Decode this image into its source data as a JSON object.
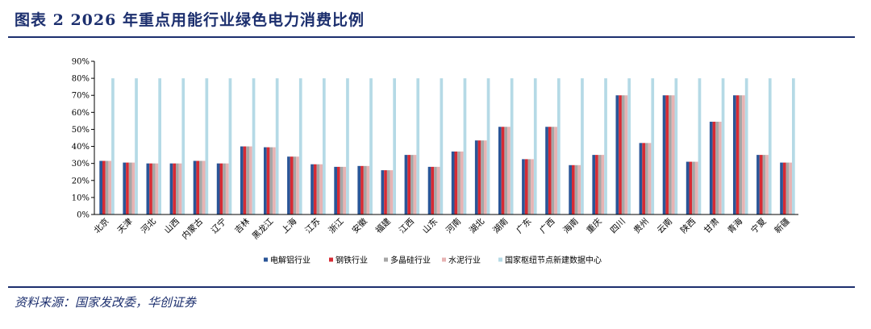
{
  "figure": {
    "title": "图表 2   2026 年重点用能行业绿色电力消费比例",
    "source": "资料来源：国家发改委，华创证券"
  },
  "chart_data": {
    "type": "bar",
    "categories": [
      "北京",
      "天津",
      "河北",
      "山西",
      "内蒙古",
      "辽宁",
      "吉林",
      "黑龙江",
      "上海",
      "江苏",
      "浙江",
      "安徽",
      "福建",
      "江西",
      "山东",
      "河南",
      "湖北",
      "湖南",
      "广东",
      "广西",
      "海南",
      "重庆",
      "四川",
      "贵州",
      "云南",
      "陕西",
      "甘肃",
      "青海",
      "宁夏",
      "新疆"
    ],
    "y_ticks": [
      "0%",
      "10%",
      "20%",
      "30%",
      "40%",
      "50%",
      "60%",
      "70%",
      "80%",
      "90%"
    ],
    "ylim": [
      0,
      90
    ],
    "legend_position": "bottom",
    "grid": false,
    "colors": [
      "#2a5597",
      "#d62b34",
      "#a6a6a6",
      "#e7b3b3",
      "#b5dae6"
    ],
    "series": [
      {
        "name": "电解铝行业",
        "values": [
          31.5,
          30.5,
          30,
          30,
          31.5,
          30,
          40,
          39.5,
          34,
          29.5,
          28,
          28.5,
          26,
          35,
          28,
          37,
          43.5,
          51.5,
          32.5,
          51.5,
          29,
          35,
          70,
          42,
          70,
          31,
          54.5,
          70,
          35,
          30.5
        ]
      },
      {
        "name": "钢铁行业",
        "values": [
          31.5,
          30.5,
          30,
          30,
          31.5,
          30,
          40,
          39.5,
          34,
          29.5,
          28,
          28.5,
          26,
          35,
          28,
          37,
          43.5,
          51.5,
          32.5,
          51.5,
          29,
          35,
          70,
          42,
          70,
          31,
          54.5,
          70,
          35,
          30.5
        ]
      },
      {
        "name": "多晶硅行业",
        "values": [
          31.5,
          30.5,
          30,
          30,
          31.5,
          30,
          40,
          39.5,
          34,
          29.5,
          28,
          28.5,
          26,
          35,
          28,
          37,
          43.5,
          51.5,
          32.5,
          51.5,
          29,
          35,
          70,
          42,
          70,
          31,
          54.5,
          70,
          35,
          30.5
        ]
      },
      {
        "name": "水泥行业",
        "values": [
          31.5,
          30.5,
          30,
          30,
          31.5,
          30,
          40,
          39.5,
          34,
          29.5,
          28,
          28.5,
          26,
          35,
          28,
          37,
          43.5,
          51.5,
          32.5,
          51.5,
          29,
          35,
          70,
          42,
          70,
          31,
          54.5,
          70,
          35,
          30.5
        ]
      },
      {
        "name": "国家枢纽节点新建数据中心",
        "values": [
          80,
          80,
          80,
          80,
          80,
          80,
          80,
          80,
          80,
          80,
          80,
          80,
          80,
          80,
          80,
          80,
          80,
          80,
          80,
          80,
          80,
          80,
          80,
          80,
          80,
          80,
          80,
          80,
          80,
          80
        ]
      }
    ]
  }
}
